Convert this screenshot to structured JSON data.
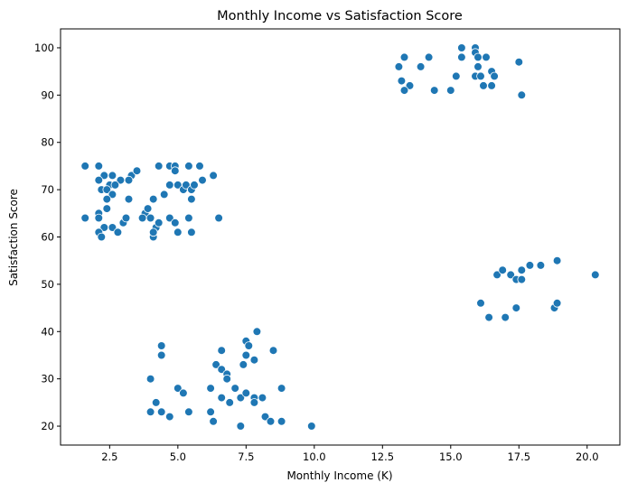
{
  "chart_data": {
    "type": "scatter",
    "title": "Monthly Income vs Satisfaction Score",
    "xlabel": "Monthly Income (K)",
    "ylabel": "Satisfaction Score",
    "xlim": [
      0.7,
      21.2
    ],
    "ylim": [
      16,
      104
    ],
    "xticks": [
      2.5,
      5.0,
      7.5,
      10.0,
      12.5,
      15.0,
      17.5,
      20.0
    ],
    "xtick_labels": [
      "2.5",
      "5.0",
      "7.5",
      "10.0",
      "12.5",
      "15.0",
      "17.5",
      "20.0"
    ],
    "yticks": [
      20,
      30,
      40,
      50,
      60,
      70,
      80,
      90,
      100
    ],
    "ytick_labels": [
      "20",
      "30",
      "40",
      "50",
      "60",
      "70",
      "80",
      "90",
      "100"
    ],
    "grid": false,
    "marker_color": "#1f77b4",
    "marker_edge_color": "#ffffff",
    "points": [
      [
        1.6,
        75
      ],
      [
        2.1,
        75
      ],
      [
        2.3,
        73
      ],
      [
        2.6,
        73
      ],
      [
        2.9,
        72
      ],
      [
        2.2,
        70
      ],
      [
        2.5,
        71
      ],
      [
        2.4,
        70
      ],
      [
        2.7,
        71
      ],
      [
        2.6,
        69
      ],
      [
        2.4,
        68
      ],
      [
        3.2,
        68
      ],
      [
        3.3,
        73
      ],
      [
        3.5,
        74
      ],
      [
        3.2,
        72
      ],
      [
        2.1,
        72
      ],
      [
        1.6,
        64
      ],
      [
        2.1,
        65
      ],
      [
        2.1,
        64
      ],
      [
        2.3,
        62
      ],
      [
        2.6,
        62
      ],
      [
        2.8,
        61
      ],
      [
        2.1,
        61
      ],
      [
        2.2,
        60
      ],
      [
        3.0,
        63
      ],
      [
        3.1,
        64
      ],
      [
        2.4,
        66
      ],
      [
        3.8,
        65
      ],
      [
        3.9,
        66
      ],
      [
        4.0,
        64
      ],
      [
        4.1,
        68
      ],
      [
        4.2,
        62
      ],
      [
        4.3,
        75
      ],
      [
        4.7,
        75
      ],
      [
        4.9,
        75
      ],
      [
        5.4,
        75
      ],
      [
        5.8,
        75
      ],
      [
        4.9,
        74
      ],
      [
        4.5,
        69
      ],
      [
        4.7,
        71
      ],
      [
        5.0,
        71
      ],
      [
        5.2,
        70
      ],
      [
        5.3,
        71
      ],
      [
        5.5,
        70
      ],
      [
        5.6,
        71
      ],
      [
        5.9,
        72
      ],
      [
        6.3,
        73
      ],
      [
        5.5,
        68
      ],
      [
        3.7,
        64
      ],
      [
        4.1,
        60
      ],
      [
        4.1,
        61
      ],
      [
        4.3,
        63
      ],
      [
        4.7,
        64
      ],
      [
        4.9,
        63
      ],
      [
        5.0,
        61
      ],
      [
        5.4,
        64
      ],
      [
        5.5,
        61
      ],
      [
        6.5,
        64
      ],
      [
        4.0,
        30
      ],
      [
        4.2,
        25
      ],
      [
        4.4,
        37
      ],
      [
        4.4,
        35
      ],
      [
        4.0,
        23
      ],
      [
        4.4,
        23
      ],
      [
        4.7,
        22
      ],
      [
        5.0,
        28
      ],
      [
        5.2,
        27
      ],
      [
        5.4,
        23
      ],
      [
        6.2,
        28
      ],
      [
        6.4,
        33
      ],
      [
        6.6,
        36
      ],
      [
        6.6,
        32
      ],
      [
        6.8,
        31
      ],
      [
        6.8,
        30
      ],
      [
        6.6,
        26
      ],
      [
        6.9,
        25
      ],
      [
        7.1,
        28
      ],
      [
        7.3,
        26
      ],
      [
        7.4,
        33
      ],
      [
        7.5,
        38
      ],
      [
        7.5,
        35
      ],
      [
        7.6,
        37
      ],
      [
        7.8,
        34
      ],
      [
        7.9,
        40
      ],
      [
        7.5,
        27
      ],
      [
        7.8,
        26
      ],
      [
        8.1,
        26
      ],
      [
        8.5,
        36
      ],
      [
        8.8,
        28
      ],
      [
        6.2,
        23
      ],
      [
        6.3,
        21
      ],
      [
        7.3,
        20
      ],
      [
        8.2,
        22
      ],
      [
        8.4,
        21
      ],
      [
        8.8,
        21
      ],
      [
        9.9,
        20
      ],
      [
        7.8,
        25
      ],
      [
        13.1,
        96
      ],
      [
        13.3,
        98
      ],
      [
        13.2,
        93
      ],
      [
        13.5,
        92
      ],
      [
        13.3,
        91
      ],
      [
        13.9,
        96
      ],
      [
        14.2,
        98
      ],
      [
        14.4,
        91
      ],
      [
        15.0,
        91
      ],
      [
        15.2,
        94
      ],
      [
        15.4,
        100
      ],
      [
        15.4,
        98
      ],
      [
        15.9,
        100
      ],
      [
        15.9,
        99
      ],
      [
        16.0,
        98
      ],
      [
        16.0,
        96
      ],
      [
        15.9,
        94
      ],
      [
        16.1,
        94
      ],
      [
        16.3,
        98
      ],
      [
        16.5,
        95
      ],
      [
        16.6,
        94
      ],
      [
        16.2,
        92
      ],
      [
        16.5,
        92
      ],
      [
        17.5,
        97
      ],
      [
        17.6,
        90
      ],
      [
        16.1,
        46
      ],
      [
        16.4,
        43
      ],
      [
        16.7,
        52
      ],
      [
        16.9,
        53
      ],
      [
        17.0,
        43
      ],
      [
        17.2,
        52
      ],
      [
        17.4,
        45
      ],
      [
        17.4,
        51
      ],
      [
        17.6,
        51
      ],
      [
        17.6,
        53
      ],
      [
        17.9,
        54
      ],
      [
        18.3,
        54
      ],
      [
        18.9,
        55
      ],
      [
        18.8,
        45
      ],
      [
        18.9,
        46
      ],
      [
        20.3,
        52
      ]
    ]
  }
}
